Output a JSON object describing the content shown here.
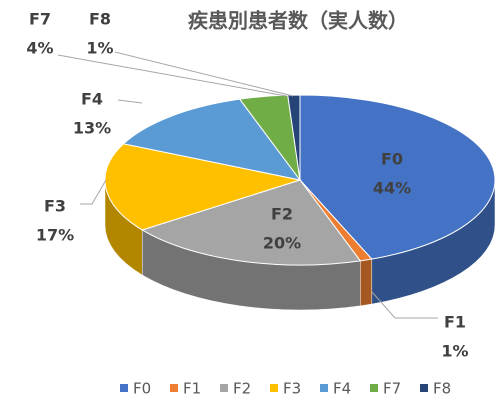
{
  "chart_data": {
    "type": "pie",
    "title": "疾患別患者数（実人数）",
    "categories": [
      "F0",
      "F1",
      "F2",
      "F3",
      "F4",
      "F7",
      "F8"
    ],
    "values": [
      44,
      1,
      20,
      17,
      13,
      4,
      1
    ],
    "value_labels": [
      "44%",
      "1%",
      "20%",
      "17%",
      "13%",
      "4%",
      "1%"
    ],
    "colors": [
      "#4472c4",
      "#ed7d31",
      "#a5a5a5",
      "#ffc000",
      "#5b9bd5",
      "#70ad47",
      "#264478"
    ],
    "legend": "bottom"
  }
}
